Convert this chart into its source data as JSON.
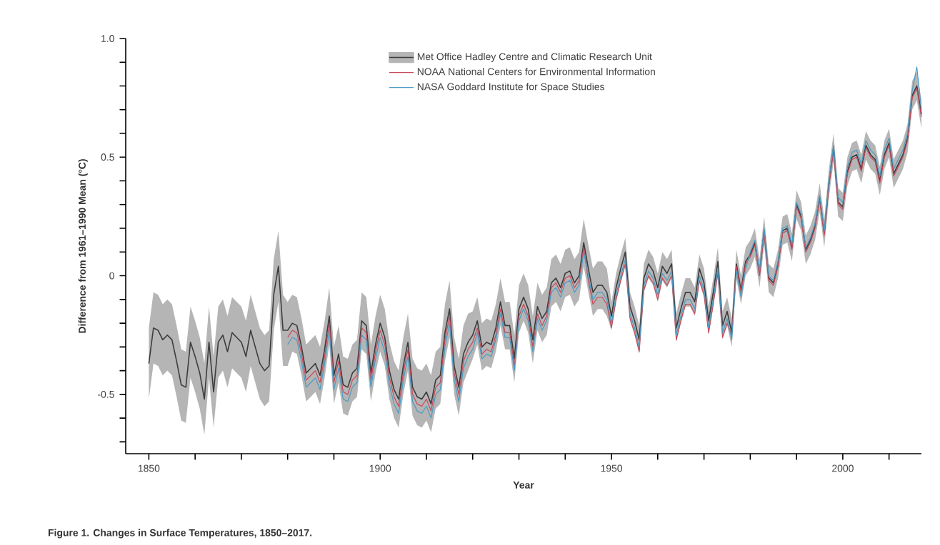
{
  "chart_data": {
    "type": "line",
    "title": "Figure 1. Changes in Surface Temperatures, 1850–2017.",
    "xlabel": "Year",
    "ylabel": "Difference from 1961–1990 Mean (°C)",
    "x": [
      1850,
      1851,
      1852,
      1853,
      1854,
      1855,
      1856,
      1857,
      1858,
      1859,
      1860,
      1861,
      1862,
      1863,
      1864,
      1865,
      1866,
      1867,
      1868,
      1869,
      1870,
      1871,
      1872,
      1873,
      1874,
      1875,
      1876,
      1877,
      1878,
      1879,
      1880,
      1881,
      1882,
      1883,
      1884,
      1885,
      1886,
      1887,
      1888,
      1889,
      1890,
      1891,
      1892,
      1893,
      1894,
      1895,
      1896,
      1897,
      1898,
      1899,
      1900,
      1901,
      1902,
      1903,
      1904,
      1905,
      1906,
      1907,
      1908,
      1909,
      1910,
      1911,
      1912,
      1913,
      1914,
      1915,
      1916,
      1917,
      1918,
      1919,
      1920,
      1921,
      1922,
      1923,
      1924,
      1925,
      1926,
      1927,
      1928,
      1929,
      1930,
      1931,
      1932,
      1933,
      1934,
      1935,
      1936,
      1937,
      1938,
      1939,
      1940,
      1941,
      1942,
      1943,
      1944,
      1945,
      1946,
      1947,
      1948,
      1949,
      1950,
      1951,
      1952,
      1953,
      1954,
      1955,
      1956,
      1957,
      1958,
      1959,
      1960,
      1961,
      1962,
      1963,
      1964,
      1965,
      1966,
      1967,
      1968,
      1969,
      1970,
      1971,
      1972,
      1973,
      1974,
      1975,
      1976,
      1977,
      1978,
      1979,
      1980,
      1981,
      1982,
      1983,
      1984,
      1985,
      1986,
      1987,
      1988,
      1989,
      1990,
      1991,
      1992,
      1993,
      1994,
      1995,
      1996,
      1997,
      1998,
      1999,
      2000,
      2001,
      2002,
      2003,
      2004,
      2005,
      2006,
      2007,
      2008,
      2009,
      2010,
      2011,
      2012,
      2013,
      2014,
      2015,
      2016,
      2017
    ],
    "series": [
      {
        "name": "Met Office Hadley Centre and Climatic Research Unit",
        "color": "#3c3c3c",
        "values": [
          -0.37,
          -0.22,
          -0.23,
          -0.27,
          -0.25,
          -0.27,
          -0.36,
          -0.46,
          -0.47,
          -0.28,
          -0.34,
          -0.41,
          -0.52,
          -0.28,
          -0.49,
          -0.28,
          -0.25,
          -0.32,
          -0.24,
          -0.26,
          -0.28,
          -0.34,
          -0.23,
          -0.3,
          -0.37,
          -0.4,
          -0.38,
          -0.08,
          0.04,
          -0.23,
          -0.23,
          -0.2,
          -0.21,
          -0.3,
          -0.41,
          -0.39,
          -0.37,
          -0.42,
          -0.31,
          -0.17,
          -0.42,
          -0.33,
          -0.46,
          -0.47,
          -0.41,
          -0.39,
          -0.19,
          -0.21,
          -0.41,
          -0.29,
          -0.2,
          -0.26,
          -0.4,
          -0.48,
          -0.52,
          -0.38,
          -0.28,
          -0.47,
          -0.51,
          -0.52,
          -0.49,
          -0.54,
          -0.44,
          -0.42,
          -0.24,
          -0.14,
          -0.38,
          -0.47,
          -0.33,
          -0.28,
          -0.25,
          -0.19,
          -0.3,
          -0.28,
          -0.29,
          -0.22,
          -0.11,
          -0.21,
          -0.21,
          -0.35,
          -0.14,
          -0.09,
          -0.14,
          -0.27,
          -0.13,
          -0.18,
          -0.15,
          -0.03,
          -0.01,
          -0.05,
          0.01,
          0.02,
          -0.03,
          0.0,
          0.14,
          0.03,
          -0.07,
          -0.04,
          -0.04,
          -0.07,
          -0.17,
          -0.05,
          0.03,
          0.1,
          -0.13,
          -0.19,
          -0.27,
          -0.01,
          0.05,
          0.02,
          -0.05,
          0.04,
          0.01,
          0.05,
          -0.22,
          -0.14,
          -0.07,
          -0.07,
          -0.11,
          0.03,
          -0.03,
          -0.19,
          -0.07,
          0.06,
          -0.21,
          -0.15,
          -0.24,
          0.05,
          -0.06,
          0.06,
          0.09,
          0.14,
          0.01,
          0.19,
          -0.01,
          -0.03,
          0.05,
          0.19,
          0.2,
          0.12,
          0.3,
          0.25,
          0.11,
          0.15,
          0.21,
          0.33,
          0.18,
          0.39,
          0.54,
          0.31,
          0.29,
          0.44,
          0.5,
          0.51,
          0.45,
          0.55,
          0.51,
          0.49,
          0.4,
          0.51,
          0.56,
          0.43,
          0.47,
          0.51,
          0.58,
          0.76,
          0.8,
          0.68
        ],
        "upper": [
          -0.22,
          -0.07,
          -0.08,
          -0.12,
          -0.1,
          -0.12,
          -0.21,
          -0.31,
          -0.32,
          -0.13,
          -0.19,
          -0.26,
          -0.37,
          -0.13,
          -0.34,
          -0.13,
          -0.1,
          -0.17,
          -0.09,
          -0.11,
          -0.13,
          -0.19,
          -0.08,
          -0.15,
          -0.22,
          -0.25,
          -0.23,
          0.07,
          0.19,
          -0.08,
          -0.11,
          -0.08,
          -0.09,
          -0.18,
          -0.29,
          -0.27,
          -0.25,
          -0.3,
          -0.19,
          -0.05,
          -0.3,
          -0.21,
          -0.34,
          -0.35,
          -0.29,
          -0.27,
          -0.07,
          -0.09,
          -0.29,
          -0.17,
          -0.08,
          -0.14,
          -0.28,
          -0.36,
          -0.4,
          -0.26,
          -0.16,
          -0.35,
          -0.39,
          -0.4,
          -0.37,
          -0.42,
          -0.32,
          -0.3,
          -0.12,
          -0.02,
          -0.26,
          -0.35,
          -0.21,
          -0.16,
          -0.15,
          -0.09,
          -0.2,
          -0.18,
          -0.19,
          -0.12,
          -0.01,
          -0.11,
          -0.11,
          -0.25,
          -0.04,
          0.01,
          -0.04,
          -0.17,
          -0.03,
          -0.08,
          -0.05,
          0.07,
          0.09,
          0.05,
          0.11,
          0.12,
          0.07,
          0.1,
          0.24,
          0.13,
          0.03,
          0.06,
          0.06,
          0.03,
          -0.11,
          0.01,
          0.09,
          0.16,
          -0.07,
          -0.13,
          -0.21,
          0.05,
          0.11,
          0.08,
          0.01,
          0.1,
          0.07,
          0.11,
          -0.16,
          -0.08,
          -0.01,
          -0.01,
          -0.05,
          0.09,
          0.03,
          -0.13,
          -0.01,
          0.12,
          -0.15,
          -0.09,
          -0.18,
          0.11,
          0.0,
          0.12,
          0.15,
          0.2,
          0.07,
          0.25,
          0.05,
          0.03,
          0.11,
          0.25,
          0.26,
          0.18,
          0.36,
          0.31,
          0.17,
          0.21,
          0.27,
          0.39,
          0.24,
          0.45,
          0.6,
          0.37,
          0.35,
          0.5,
          0.56,
          0.57,
          0.51,
          0.61,
          0.57,
          0.55,
          0.46,
          0.57,
          0.62,
          0.49,
          0.53,
          0.57,
          0.64,
          0.82,
          0.86,
          0.74
        ],
        "lower": [
          -0.52,
          -0.37,
          -0.38,
          -0.42,
          -0.4,
          -0.42,
          -0.51,
          -0.61,
          -0.62,
          -0.43,
          -0.49,
          -0.56,
          -0.67,
          -0.43,
          -0.64,
          -0.43,
          -0.4,
          -0.47,
          -0.39,
          -0.41,
          -0.43,
          -0.49,
          -0.38,
          -0.45,
          -0.52,
          -0.55,
          -0.53,
          -0.23,
          -0.11,
          -0.38,
          -0.38,
          -0.32,
          -0.33,
          -0.42,
          -0.53,
          -0.51,
          -0.49,
          -0.54,
          -0.43,
          -0.29,
          -0.54,
          -0.45,
          -0.58,
          -0.59,
          -0.53,
          -0.51,
          -0.31,
          -0.33,
          -0.53,
          -0.41,
          -0.32,
          -0.38,
          -0.52,
          -0.6,
          -0.64,
          -0.5,
          -0.4,
          -0.59,
          -0.63,
          -0.64,
          -0.61,
          -0.66,
          -0.56,
          -0.54,
          -0.36,
          -0.26,
          -0.5,
          -0.59,
          -0.45,
          -0.4,
          -0.35,
          -0.29,
          -0.4,
          -0.38,
          -0.39,
          -0.32,
          -0.21,
          -0.31,
          -0.31,
          -0.45,
          -0.24,
          -0.19,
          -0.24,
          -0.37,
          -0.23,
          -0.28,
          -0.25,
          -0.13,
          -0.11,
          -0.15,
          -0.09,
          -0.08,
          -0.13,
          -0.1,
          0.04,
          -0.07,
          -0.17,
          -0.14,
          -0.14,
          -0.17,
          -0.23,
          -0.11,
          -0.03,
          0.04,
          -0.19,
          -0.25,
          -0.33,
          -0.07,
          -0.01,
          -0.04,
          -0.11,
          -0.02,
          -0.05,
          -0.01,
          -0.28,
          -0.2,
          -0.13,
          -0.13,
          -0.17,
          -0.03,
          -0.09,
          -0.25,
          -0.13,
          0.0,
          -0.27,
          -0.21,
          -0.3,
          -0.01,
          -0.12,
          0.0,
          0.03,
          0.08,
          -0.05,
          0.13,
          -0.07,
          -0.09,
          -0.01,
          0.13,
          0.14,
          0.06,
          0.24,
          0.19,
          0.05,
          0.09,
          0.15,
          0.27,
          0.12,
          0.33,
          0.48,
          0.25,
          0.23,
          0.38,
          0.44,
          0.45,
          0.39,
          0.49,
          0.45,
          0.43,
          0.34,
          0.45,
          0.5,
          0.37,
          0.41,
          0.45,
          0.52,
          0.7,
          0.74,
          0.62
        ]
      },
      {
        "name": "NOAA National Centers for Environmental Information",
        "color": "#c8485a",
        "values": [
          null,
          null,
          null,
          null,
          null,
          null,
          null,
          null,
          null,
          null,
          null,
          null,
          null,
          null,
          null,
          null,
          null,
          null,
          null,
          null,
          null,
          null,
          null,
          null,
          null,
          null,
          null,
          null,
          null,
          null,
          -0.26,
          -0.23,
          -0.24,
          -0.33,
          -0.44,
          -0.42,
          -0.4,
          -0.45,
          -0.34,
          -0.2,
          -0.45,
          -0.36,
          -0.49,
          -0.5,
          -0.44,
          -0.42,
          -0.22,
          -0.24,
          -0.44,
          -0.32,
          -0.23,
          -0.29,
          -0.43,
          -0.51,
          -0.55,
          -0.41,
          -0.31,
          -0.5,
          -0.54,
          -0.55,
          -0.52,
          -0.57,
          -0.47,
          -0.45,
          -0.27,
          -0.17,
          -0.41,
          -0.5,
          -0.36,
          -0.31,
          -0.28,
          -0.22,
          -0.33,
          -0.31,
          -0.32,
          -0.25,
          -0.14,
          -0.24,
          -0.24,
          -0.38,
          -0.17,
          -0.12,
          -0.17,
          -0.3,
          -0.16,
          -0.21,
          -0.17,
          -0.05,
          -0.03,
          -0.07,
          -0.01,
          0.0,
          -0.05,
          -0.02,
          0.12,
          -0.02,
          -0.12,
          -0.09,
          -0.09,
          -0.12,
          -0.22,
          -0.1,
          -0.02,
          0.05,
          -0.18,
          -0.24,
          -0.32,
          -0.06,
          0.0,
          -0.03,
          -0.1,
          -0.01,
          -0.04,
          0.0,
          -0.27,
          -0.19,
          -0.12,
          -0.12,
          -0.16,
          -0.02,
          -0.08,
          -0.24,
          -0.12,
          0.01,
          -0.26,
          -0.2,
          -0.25,
          0.04,
          -0.07,
          0.05,
          0.08,
          0.13,
          0.0,
          0.18,
          -0.02,
          -0.04,
          0.04,
          0.18,
          0.19,
          0.11,
          0.29,
          0.24,
          0.1,
          0.14,
          0.2,
          0.32,
          0.17,
          0.38,
          0.53,
          0.3,
          0.28,
          0.43,
          0.49,
          0.5,
          0.44,
          0.54,
          0.5,
          0.48,
          0.39,
          0.5,
          0.55,
          0.42,
          0.46,
          0.5,
          0.57,
          0.75,
          0.79,
          0.67
        ]
      },
      {
        "name": "NASA Goddard Institute for Space Studies",
        "color": "#4a9cc4",
        "values": [
          null,
          null,
          null,
          null,
          null,
          null,
          null,
          null,
          null,
          null,
          null,
          null,
          null,
          null,
          null,
          null,
          null,
          null,
          null,
          null,
          null,
          null,
          null,
          null,
          null,
          null,
          null,
          null,
          null,
          null,
          -0.29,
          -0.26,
          -0.27,
          -0.36,
          -0.47,
          -0.45,
          -0.43,
          -0.48,
          -0.37,
          -0.23,
          -0.48,
          -0.39,
          -0.52,
          -0.53,
          -0.47,
          -0.45,
          -0.25,
          -0.27,
          -0.47,
          -0.35,
          -0.26,
          -0.32,
          -0.46,
          -0.54,
          -0.58,
          -0.44,
          -0.34,
          -0.53,
          -0.57,
          -0.58,
          -0.55,
          -0.6,
          -0.5,
          -0.48,
          -0.3,
          -0.2,
          -0.44,
          -0.53,
          -0.39,
          -0.34,
          -0.31,
          -0.24,
          -0.35,
          -0.33,
          -0.34,
          -0.27,
          -0.16,
          -0.26,
          -0.26,
          -0.4,
          -0.19,
          -0.14,
          -0.19,
          -0.32,
          -0.18,
          -0.23,
          -0.19,
          -0.07,
          -0.05,
          -0.09,
          -0.03,
          -0.02,
          -0.07,
          -0.04,
          0.1,
          0.0,
          -0.1,
          -0.07,
          -0.07,
          -0.1,
          -0.2,
          -0.08,
          0.0,
          0.07,
          -0.16,
          -0.22,
          -0.3,
          -0.04,
          0.02,
          -0.01,
          -0.08,
          0.01,
          -0.02,
          0.02,
          -0.25,
          -0.17,
          -0.1,
          -0.1,
          -0.14,
          0.0,
          -0.06,
          -0.22,
          -0.1,
          0.03,
          -0.24,
          -0.18,
          -0.27,
          0.02,
          -0.09,
          0.03,
          0.1,
          0.15,
          0.02,
          0.2,
          0.0,
          -0.02,
          0.06,
          0.2,
          0.21,
          0.13,
          0.31,
          0.26,
          0.12,
          0.16,
          0.22,
          0.34,
          0.19,
          0.4,
          0.55,
          0.33,
          0.31,
          0.46,
          0.52,
          0.53,
          0.47,
          0.57,
          0.53,
          0.51,
          0.42,
          0.53,
          0.58,
          0.45,
          0.49,
          0.53,
          0.6,
          0.78,
          0.88,
          0.7
        ]
      }
    ],
    "xlim": [
      1845,
      2017
    ],
    "ylim": [
      -0.75,
      1.0
    ],
    "xticks": [
      1850,
      {
        "value": 1860,
        "label": null
      },
      {
        "value": 1870,
        "label": null
      },
      {
        "value": 1880,
        "label": null
      },
      {
        "value": 1890,
        "label": null
      },
      1900,
      {
        "value": 1910,
        "label": null
      },
      {
        "value": 1920,
        "label": null
      },
      {
        "value": 1930,
        "label": null
      },
      {
        "value": 1940,
        "label": null
      },
      1950,
      {
        "value": 1960,
        "label": null
      },
      {
        "value": 1970,
        "label": null
      },
      {
        "value": 1980,
        "label": null
      },
      {
        "value": 1990,
        "label": null
      },
      2000,
      {
        "value": 2010,
        "label": null
      }
    ],
    "yticks": [
      {
        "value": -0.7,
        "label": null
      },
      {
        "value": -0.6,
        "label": null
      },
      -0.5,
      {
        "value": -0.4,
        "label": null
      },
      {
        "value": -0.3,
        "label": null
      },
      {
        "value": -0.2,
        "label": null
      },
      {
        "value": -0.1,
        "label": null
      },
      0,
      {
        "value": 0.1,
        "label": null
      },
      {
        "value": 0.2,
        "label": null
      },
      {
        "value": 0.3,
        "label": null
      },
      {
        "value": 0.4,
        "label": null
      },
      0.5,
      {
        "value": 0.6,
        "label": null
      },
      {
        "value": 0.7,
        "label": null
      },
      {
        "value": 0.8,
        "label": null
      },
      {
        "value": 0.9,
        "label": null
      },
      {
        "value": 1.0,
        "label": "1.0"
      }
    ],
    "legend": "top"
  }
}
